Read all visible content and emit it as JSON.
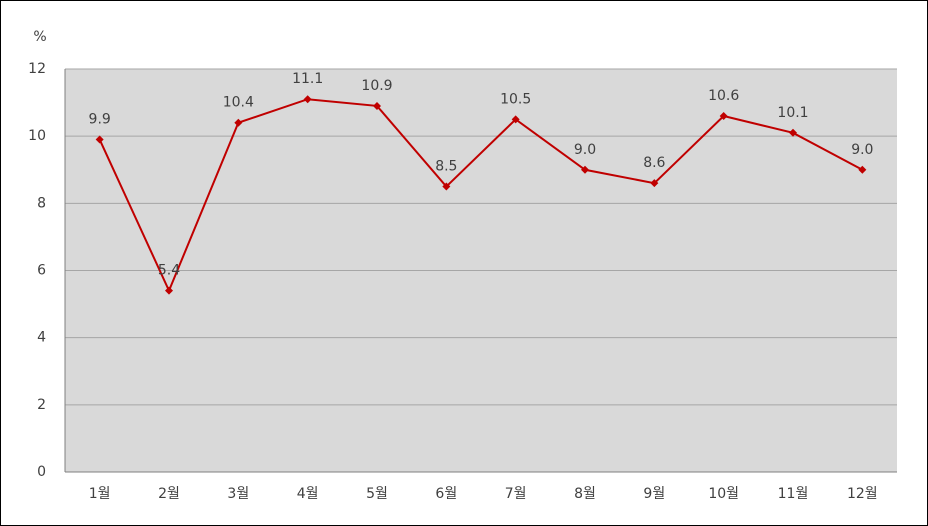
{
  "chart_data": {
    "type": "line",
    "y_axis_label": "%",
    "categories": [
      "1월",
      "2월",
      "3월",
      "4월",
      "5월",
      "6월",
      "7월",
      "8월",
      "9월",
      "10월",
      "11월",
      "12월"
    ],
    "series": [
      {
        "color": "#c00000",
        "values": [
          9.9,
          5.4,
          10.4,
          11.1,
          10.9,
          8.5,
          10.5,
          9.0,
          8.6,
          10.6,
          10.1,
          9.0
        ],
        "value_labels": [
          "9.9",
          "5.4",
          "10.4",
          "11.1",
          "10.9",
          "8.5",
          "10.5",
          "9.0",
          "8.6",
          "10.6",
          "10.1",
          "9.0"
        ]
      }
    ],
    "ylim": [
      0,
      12
    ],
    "yticks": [
      0,
      2,
      4,
      6,
      8,
      10,
      12
    ],
    "grid": true
  }
}
